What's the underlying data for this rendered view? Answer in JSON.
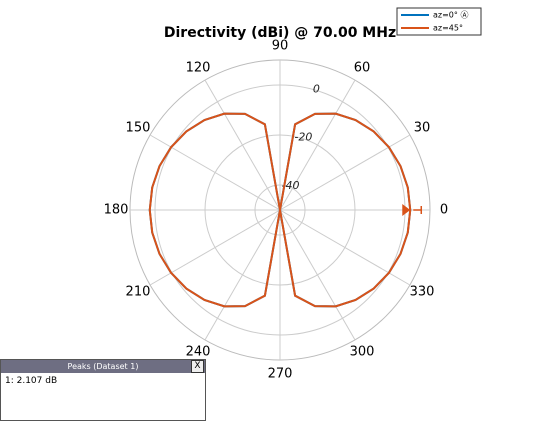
{
  "chart_data": {
    "type": "polar",
    "title": "Directivity (dBi) @ 70.00 MHz",
    "theta": [
      0,
      10,
      20,
      30,
      40,
      50,
      60,
      70,
      80,
      90,
      100,
      110,
      120,
      130,
      140,
      150,
      160,
      170,
      180,
      190,
      200,
      210,
      220,
      230,
      240,
      250,
      260,
      270,
      280,
      290,
      300,
      310,
      320,
      330,
      340,
      350
    ],
    "series": [
      {
        "name": "az=0° Ⓐ",
        "color": "#0072bd",
        "values": [
          2.1,
          1.9,
          1.3,
          0.3,
          -1.1,
          -3.0,
          -5.5,
          -9.1,
          -15.2,
          -50,
          -15.2,
          -9.1,
          -5.5,
          -3.0,
          -1.1,
          0.3,
          1.3,
          1.9,
          2.1,
          1.9,
          1.3,
          0.3,
          -1.1,
          -3.0,
          -5.5,
          -9.1,
          -15.2,
          -50,
          -15.2,
          -9.1,
          -5.5,
          -3.0,
          -1.1,
          0.3,
          1.3,
          1.9
        ]
      },
      {
        "name": "az=45°",
        "color": "#d95319",
        "values": [
          2.1,
          1.9,
          1.3,
          0.3,
          -1.1,
          -3.0,
          -5.5,
          -9.1,
          -15.2,
          -50,
          -15.2,
          -9.1,
          -5.5,
          -3.0,
          -1.1,
          0.3,
          1.3,
          1.9,
          2.1,
          1.9,
          1.3,
          0.3,
          -1.1,
          -3.0,
          -5.5,
          -9.1,
          -15.2,
          -50,
          -15.2,
          -9.1,
          -5.5,
          -3.0,
          -1.1,
          0.3,
          1.3,
          1.9
        ]
      }
    ],
    "rlim": [
      -50,
      10
    ],
    "rticks": [
      -40,
      -20,
      0
    ],
    "theta_ticks": [
      0,
      30,
      60,
      90,
      120,
      150,
      180,
      210,
      240,
      270,
      300,
      330
    ],
    "peak": {
      "angle": 0,
      "value": 2.107
    },
    "legend": "upper right"
  },
  "peaks_panel": {
    "title": "Peaks (Dataset 1)",
    "close": "X",
    "rows": [
      "1: 2.107 dB"
    ]
  }
}
